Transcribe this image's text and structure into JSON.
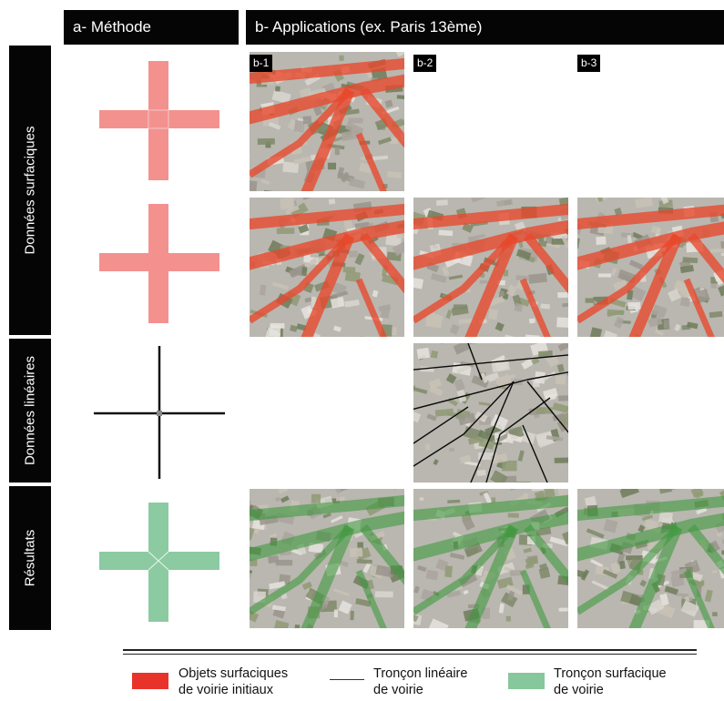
{
  "headers": {
    "methode": "a- Méthode",
    "applications": "b- Applications (ex. Paris 13ème)"
  },
  "row_labels": {
    "surfaciques": "Données surfaciques",
    "lineaires": "Données linéaires",
    "resultats": "Résultats"
  },
  "tile_tags": [
    "b-1",
    "b-2",
    "b-3"
  ],
  "legend": {
    "objets_surfaciques": [
      "Objets surfaciques",
      "de voirie initiaux"
    ],
    "troncon_lineaire": [
      "Tronçon linéaire",
      "de voirie"
    ],
    "troncon_surfacique": [
      "Tronçon surfacique",
      "de voirie"
    ]
  },
  "colors": {
    "header_bg": "#050505",
    "cross_red": "#f3918f",
    "cross_green": "#8ccaa2",
    "road_red": "#e8482c",
    "road_green": "#3f9a3f",
    "legend_red": "#e8332b",
    "legend_green": "#86c79c"
  }
}
